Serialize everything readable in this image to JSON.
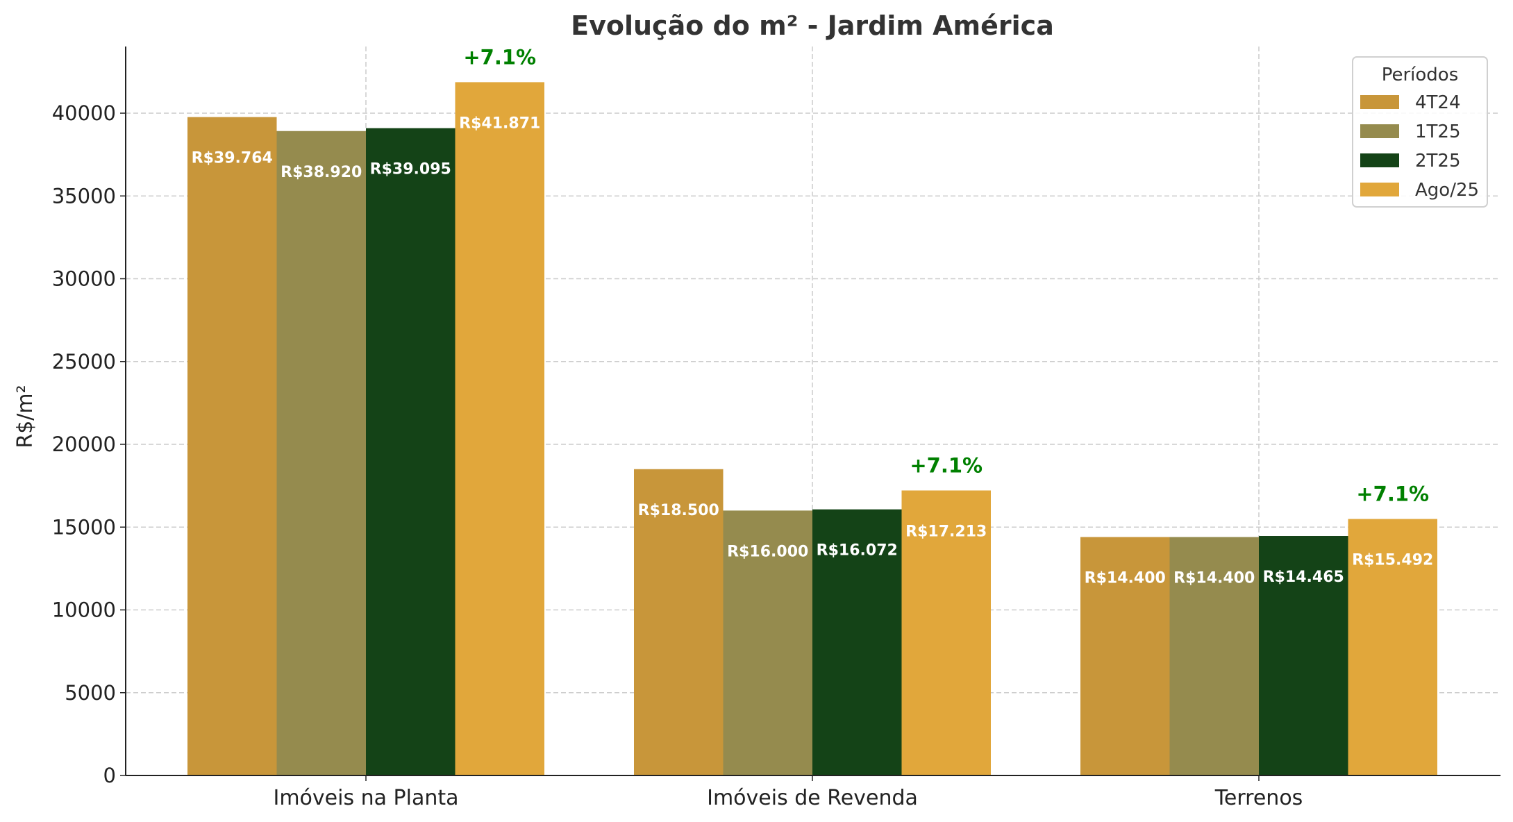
{
  "chart_data": {
    "type": "bar",
    "title": "Evolução do m² - Jardim América",
    "xlabel": "",
    "ylabel": "R$/m²",
    "ylim": [
      0,
      44000
    ],
    "yticks": [
      0,
      5000,
      10000,
      15000,
      20000,
      25000,
      30000,
      35000,
      40000
    ],
    "ytick_labels": [
      "0",
      "5000",
      "10000",
      "15000",
      "20000",
      "25000",
      "30000",
      "35000",
      "40000"
    ],
    "grid": true,
    "categories": [
      "Imóveis na Planta",
      "Imóveis de Revenda",
      "Terrenos"
    ],
    "legend": {
      "title": "Períodos",
      "placement": "top-right"
    },
    "series": [
      {
        "name": "4T24",
        "color": "#C8963A",
        "values": [
          39764,
          18500,
          14400
        ],
        "labels": [
          "R$39.764",
          "R$18.500",
          "R$14.400"
        ]
      },
      {
        "name": "1T25",
        "color": "#958B4E",
        "values": [
          38920,
          16000,
          14400
        ],
        "labels": [
          "R$38.920",
          "R$16.000",
          "R$14.400"
        ]
      },
      {
        "name": "2T25",
        "color": "#144317",
        "values": [
          39095,
          16072,
          14465
        ],
        "labels": [
          "R$39.095",
          "R$16.072",
          "R$14.465"
        ]
      },
      {
        "name": "Ago/25",
        "color": "#E1A73B",
        "values": [
          41871,
          17213,
          15492
        ],
        "labels": [
          "R$41.871",
          "R$17.213",
          "R$15.492"
        ]
      }
    ],
    "annotations": [
      {
        "category": "Imóveis na Planta",
        "series": "Ago/25",
        "text": "+7.1%",
        "color": "#008000"
      },
      {
        "category": "Imóveis de Revenda",
        "series": "Ago/25",
        "text": "+7.1%",
        "color": "#008000"
      },
      {
        "category": "Terrenos",
        "series": "Ago/25",
        "text": "+7.1%",
        "color": "#008000"
      }
    ]
  }
}
